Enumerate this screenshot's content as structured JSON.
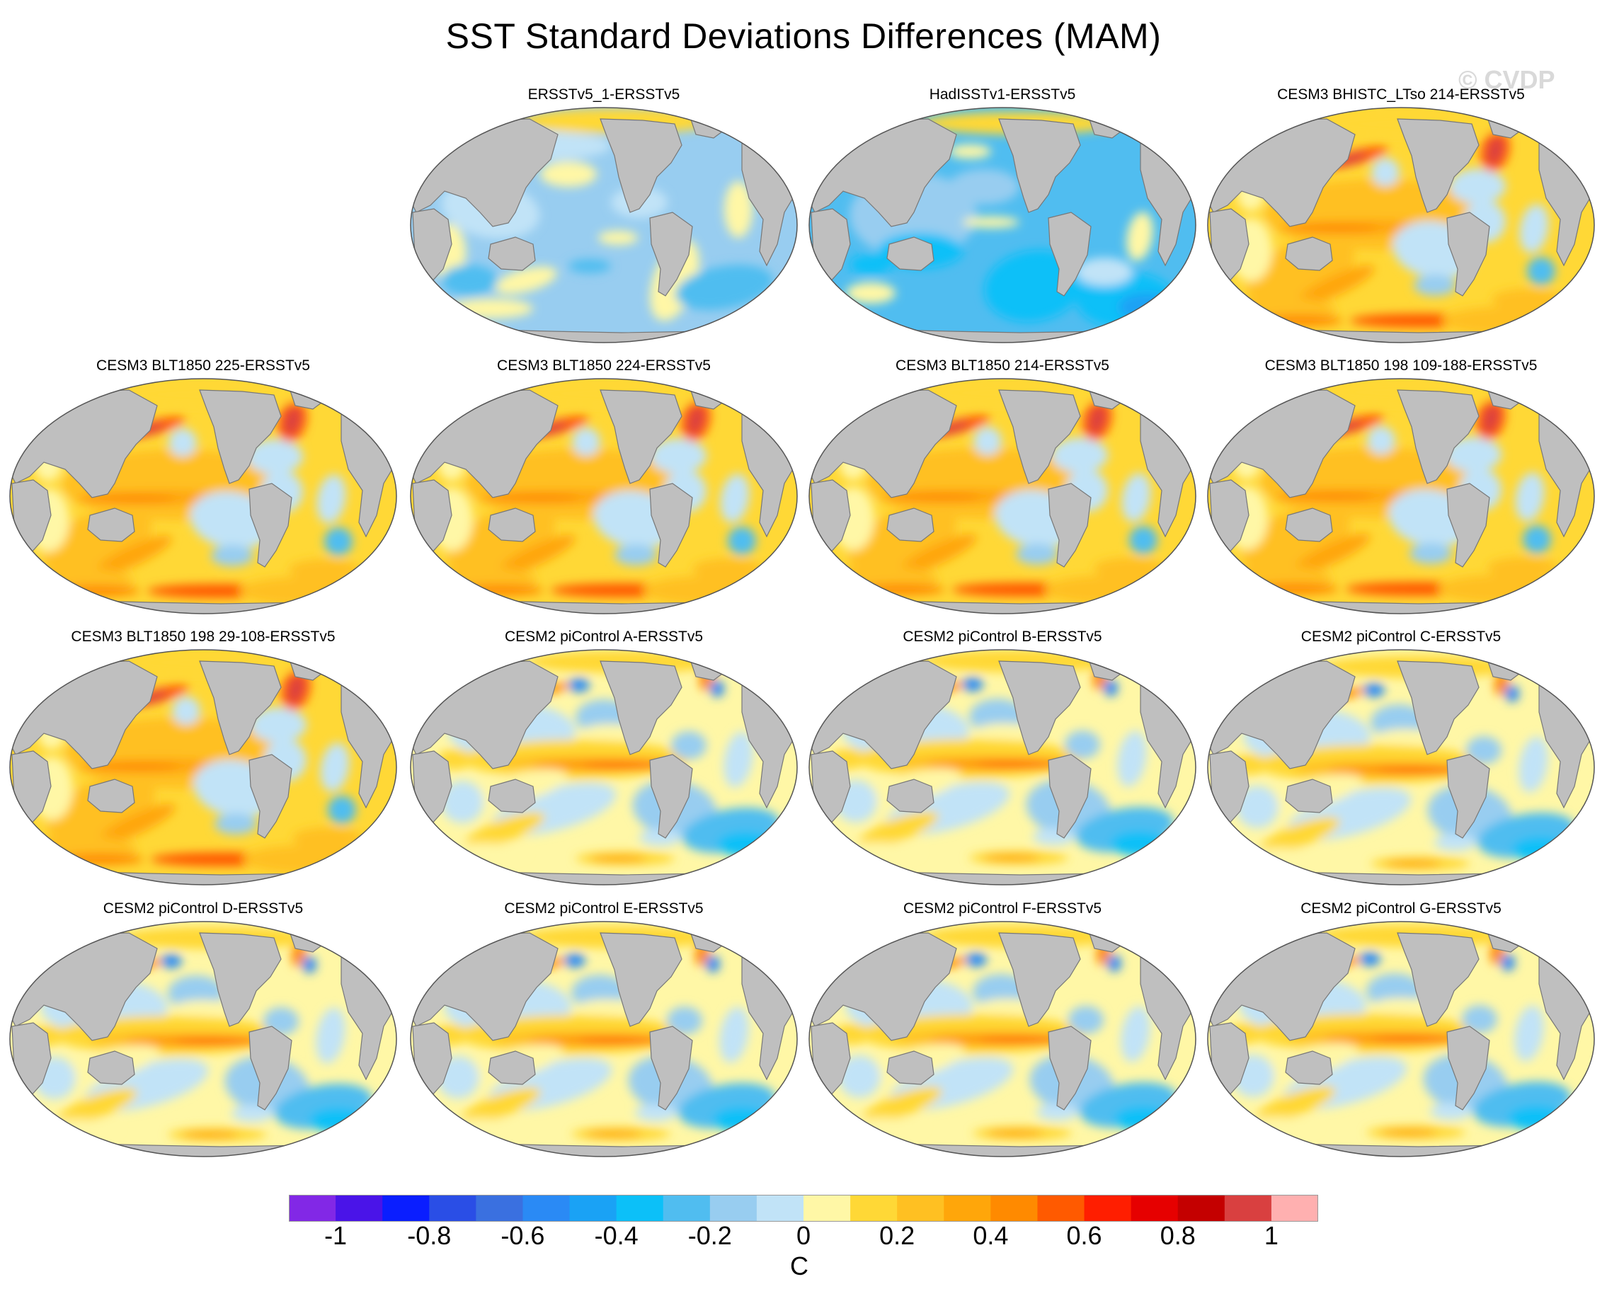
{
  "title": "SST Standard Deviations Differences (MAM)",
  "watermark": "© CVDP",
  "units": "C",
  "colors": {
    "land": "#bfbfbf",
    "outline": "#777777",
    "scale": [
      "#8228e6",
      "#4a14e8",
      "#0a1eff",
      "#2a4ee6",
      "#3a70e0",
      "#2a8af5",
      "#1aa2f5",
      "#0cc0f8",
      "#50bdf0",
      "#98cdf0",
      "#c1e3f7",
      "#fff7a6",
      "#ffd836",
      "#ffc022",
      "#ffa60a",
      "#ff8a00",
      "#ff5a00",
      "#ff1e00",
      "#e60000",
      "#c40000",
      "#d94040",
      "#ffb0b0"
    ]
  },
  "colorbar": {
    "tick_labels": [
      "-1",
      "-0.8",
      "-0.6",
      "-0.4",
      "-0.2",
      "0",
      "0.2",
      "0.4",
      "0.6",
      "0.8",
      "1"
    ]
  },
  "panels": [
    {
      "title": "ERSSTv5_1-ERSSTv5",
      "pattern": "obs1"
    },
    {
      "title": "HadISSTv1-ERSSTv5",
      "pattern": "obs2"
    },
    {
      "title": "CESM3 BHISTC_LTso 214-ERSSTv5",
      "pattern": "cesm3"
    },
    {
      "title": "CESM3 BLT1850 225-ERSSTv5",
      "pattern": "cesm3"
    },
    {
      "title": "CESM3 BLT1850 224-ERSSTv5",
      "pattern": "cesm3"
    },
    {
      "title": "CESM3 BLT1850 214-ERSSTv5",
      "pattern": "cesm3"
    },
    {
      "title": "CESM3 BLT1850 198 109-188-ERSSTv5",
      "pattern": "cesm3"
    },
    {
      "title": "CESM3 BLT1850 198 29-108-ERSSTv5",
      "pattern": "cesm3"
    },
    {
      "title": "CESM2 piControl A-ERSSTv5",
      "pattern": "cesm2"
    },
    {
      "title": "CESM2 piControl B-ERSSTv5",
      "pattern": "cesm2"
    },
    {
      "title": "CESM2 piControl C-ERSSTv5",
      "pattern": "cesm2"
    },
    {
      "title": "CESM2 piControl D-ERSSTv5",
      "pattern": "cesm2"
    },
    {
      "title": "CESM2 piControl E-ERSSTv5",
      "pattern": "cesm2"
    },
    {
      "title": "CESM2 piControl F-ERSSTv5",
      "pattern": "cesm2"
    },
    {
      "title": "CESM2 piControl G-ERSSTv5",
      "pattern": "cesm2"
    }
  ]
}
